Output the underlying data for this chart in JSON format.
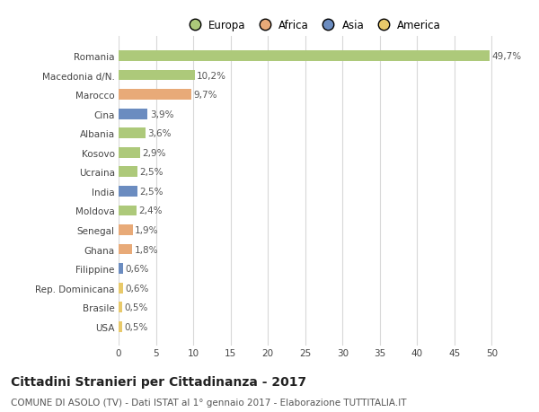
{
  "categories": [
    "Romania",
    "Macedonia d/N.",
    "Marocco",
    "Cina",
    "Albania",
    "Kosovo",
    "Ucraina",
    "India",
    "Moldova",
    "Senegal",
    "Ghana",
    "Filippine",
    "Rep. Dominicana",
    "Brasile",
    "USA"
  ],
  "values": [
    49.7,
    10.2,
    9.7,
    3.9,
    3.6,
    2.9,
    2.5,
    2.5,
    2.4,
    1.9,
    1.8,
    0.6,
    0.6,
    0.5,
    0.5
  ],
  "labels": [
    "49,7%",
    "10,2%",
    "9,7%",
    "3,9%",
    "3,6%",
    "2,9%",
    "2,5%",
    "2,5%",
    "2,4%",
    "1,9%",
    "1,8%",
    "0,6%",
    "0,6%",
    "0,5%",
    "0,5%"
  ],
  "colors": [
    "#adc97a",
    "#adc97a",
    "#e8aa78",
    "#6b8cc0",
    "#adc97a",
    "#adc97a",
    "#adc97a",
    "#6b8cc0",
    "#adc97a",
    "#e8aa78",
    "#e8aa78",
    "#6b8cc0",
    "#e8c96a",
    "#e8c96a",
    "#e8c96a"
  ],
  "legend_labels": [
    "Europa",
    "Africa",
    "Asia",
    "America"
  ],
  "legend_colors": [
    "#adc97a",
    "#e8aa78",
    "#6b8cc0",
    "#e8c96a"
  ],
  "xlim": [
    0,
    52
  ],
  "xticks": [
    0,
    5,
    10,
    15,
    20,
    25,
    30,
    35,
    40,
    45,
    50
  ],
  "title": "Cittadini Stranieri per Cittadinanza - 2017",
  "subtitle": "COMUNE DI ASOLO (TV) - Dati ISTAT al 1° gennaio 2017 - Elaborazione TUTTITALIA.IT",
  "bg_color": "#ffffff",
  "grid_color": "#d8d8d8",
  "bar_height": 0.55,
  "label_fontsize": 7.5,
  "tick_fontsize": 7.5,
  "title_fontsize": 10,
  "subtitle_fontsize": 7.5,
  "legend_fontsize": 8.5
}
